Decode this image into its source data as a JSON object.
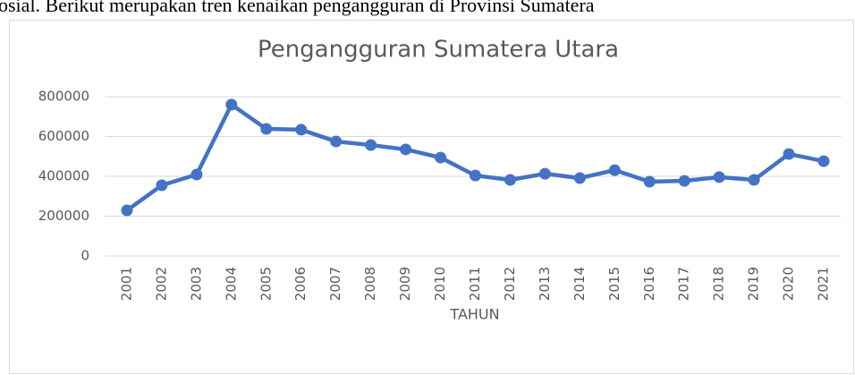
{
  "text": "osial. Berikut merupakan tren kenaikan pengangguran di Provinsi Sumatera",
  "chart_data": {
    "type": "line",
    "title": "Pengangguran Sumatera Utara",
    "x_label": "TAHUN",
    "categories": [
      "2001",
      "2002",
      "2003",
      "2004",
      "2005",
      "2006",
      "2007",
      "2008",
      "2009",
      "2010",
      "2011",
      "2012",
      "2013",
      "2014",
      "2015",
      "2016",
      "2017",
      "2018",
      "2019",
      "2020",
      "2021"
    ],
    "values": [
      229000,
      355000,
      409000,
      760000,
      638000,
      634000,
      575000,
      557000,
      535000,
      494000,
      404000,
      382000,
      413000,
      391000,
      431000,
      373000,
      377000,
      396000,
      382000,
      512000,
      476000
    ],
    "color": "#4472c4",
    "ylim": [
      0,
      800000
    ],
    "yticks": [
      0,
      200000,
      400000,
      600000,
      800000
    ],
    "grid": true
  }
}
